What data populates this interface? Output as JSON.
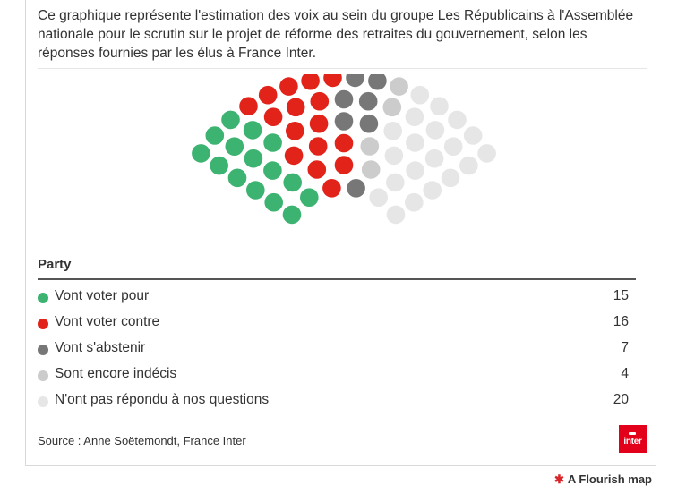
{
  "description": "Ce graphique représente l'estimation des voix au sein du groupe Les Républicains à l'Assemblée nationale pour le scrutin sur le projet de réforme des retraites du gouvernement, selon les réponses fournies par les élus à France Inter.",
  "legend_title": "Party",
  "source": "Source : Anne Soëtemondt, France Inter",
  "logo_text": "inter",
  "branding": "A Flourish map",
  "colors": {
    "pour": "#3cb371",
    "contre": "#e2231a",
    "abstenir": "#777777",
    "indecis": "#cccccc",
    "non_repondu": "#e6e6e6"
  },
  "chart_data": {
    "type": "parliament",
    "title": "",
    "series": [
      {
        "name": "Vont voter pour",
        "value": 15,
        "color": "#3cb371"
      },
      {
        "name": "Vont voter contre",
        "value": 16,
        "color": "#e2231a"
      },
      {
        "name": "Vont s'abstenir",
        "value": 7,
        "color": "#777777"
      },
      {
        "name": "Sont encore indécis",
        "value": 4,
        "color": "#cccccc"
      },
      {
        "name": "N'ont pas répondu à nos questions",
        "value": 20,
        "color": "#e6e6e6"
      }
    ]
  }
}
